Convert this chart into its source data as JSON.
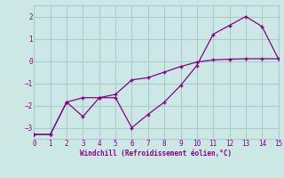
{
  "xlabel": "Windchill (Refroidissement éolien,°C)",
  "xlim": [
    0,
    15
  ],
  "ylim": [
    -3.5,
    2.5
  ],
  "xticks": [
    0,
    1,
    2,
    3,
    4,
    5,
    6,
    7,
    8,
    9,
    10,
    11,
    12,
    13,
    14,
    15
  ],
  "yticks": [
    -3,
    -2,
    -1,
    0,
    1,
    2
  ],
  "bg_color": "#cce8e4",
  "grid_color": "#aacccc",
  "line_color": "#880088",
  "line1_x": [
    0,
    1,
    2,
    3,
    4,
    5,
    6,
    7,
    8,
    9,
    10,
    11,
    12,
    13,
    14,
    15
  ],
  "line1_y": [
    -3.3,
    -3.3,
    -1.85,
    -2.5,
    -1.65,
    -1.65,
    -3.0,
    -2.4,
    -1.85,
    -1.1,
    -0.2,
    1.2,
    1.6,
    2.0,
    1.55,
    0.1
  ],
  "line2_x": [
    0,
    1,
    2,
    3,
    4,
    5,
    6,
    7,
    8,
    9,
    10,
    11,
    12,
    13,
    14,
    15
  ],
  "line2_y": [
    -3.3,
    -3.3,
    -1.85,
    -1.65,
    -1.65,
    -1.5,
    -0.85,
    -0.75,
    -0.5,
    -0.25,
    -0.05,
    0.05,
    0.08,
    0.1,
    0.1,
    0.1
  ]
}
